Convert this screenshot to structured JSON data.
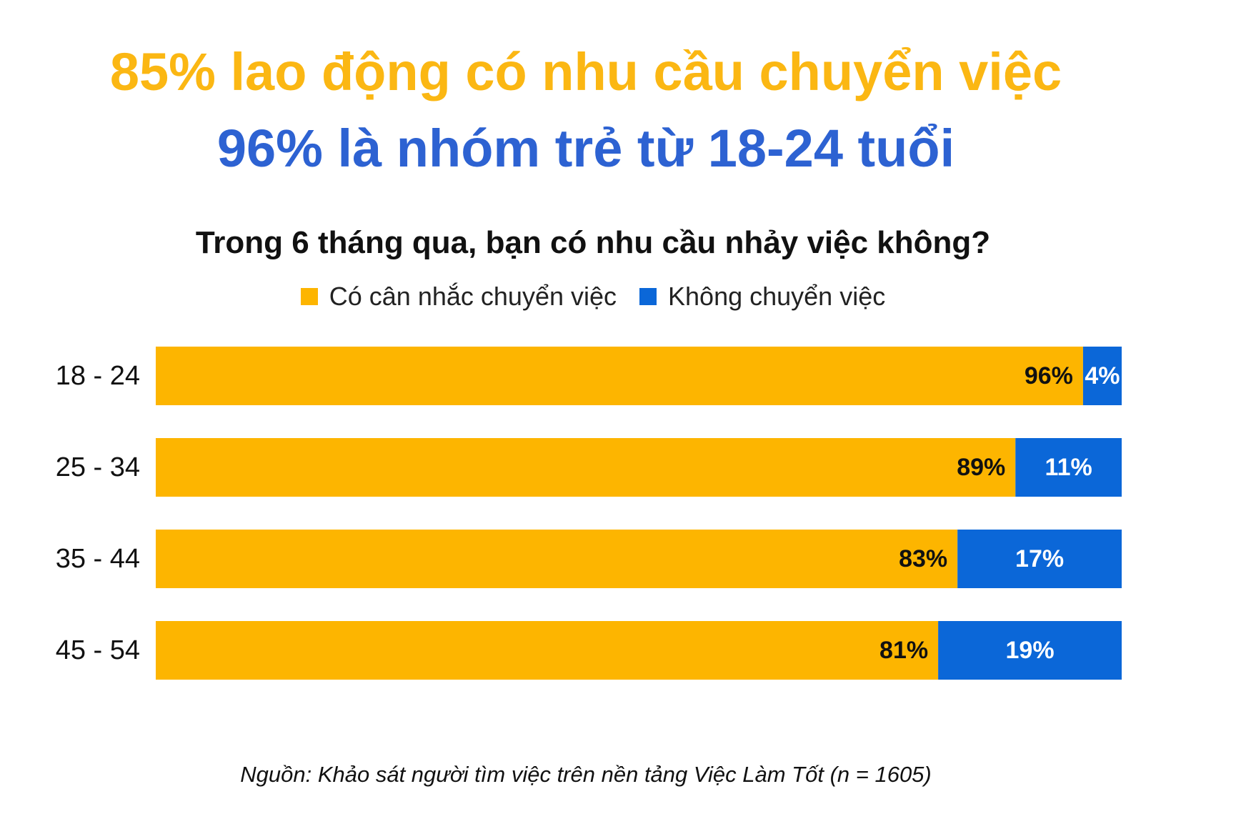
{
  "headline": {
    "line1": "85% lao động có nhu cầu chuyển việc",
    "line2": "96% là nhóm trẻ từ 18-24 tuổi"
  },
  "chart_data": {
    "type": "bar",
    "orientation": "horizontal",
    "stacked": true,
    "title": "Trong 6 tháng qua, bạn có nhu cầu nhảy việc không?",
    "categories": [
      "18 - 24",
      "25 - 34",
      "35 - 44",
      "45 - 54"
    ],
    "series": [
      {
        "name": "Có cân nhắc chuyển việc",
        "values": [
          96,
          89,
          83,
          81
        ],
        "labels": [
          "96%",
          "89%",
          "83%",
          "81%"
        ],
        "color": "#FDB500"
      },
      {
        "name": "Không chuyển việc",
        "values": [
          4,
          11,
          17,
          19
        ],
        "labels": [
          "4%",
          "11%",
          "17%",
          "19%"
        ],
        "color": "#0B67D8"
      }
    ],
    "xlim": [
      0,
      100
    ],
    "legend": "top-center",
    "grid": false
  },
  "source": "Nguồn: Khảo sát người tìm việc trên nền tảng Việc Làm Tốt (n = 1605)"
}
